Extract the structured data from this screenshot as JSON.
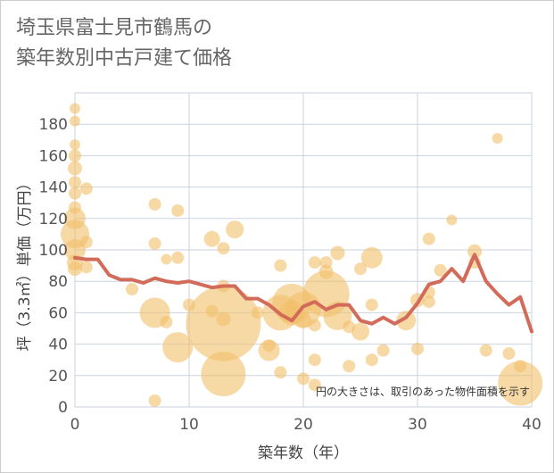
{
  "title": {
    "line1": "埼玉県富士見市鶴馬の",
    "line2": "築年数別中古戸建て価格"
  },
  "colors": {
    "bubble_fill": "#f2c06b",
    "bubble_opacity": 0.6,
    "line": "#d26b5a",
    "grid": "#c8d3e1",
    "frame": "#cccccc"
  },
  "chart_data": {
    "type": "scatter",
    "xlabel": "築年数（年）",
    "ylabel": "坪（3.3㎡）単価（万円）",
    "xlim": [
      0,
      40
    ],
    "ylim": [
      0,
      200
    ],
    "xticks": [
      0,
      10,
      20,
      30,
      40
    ],
    "yticks": [
      0,
      20,
      40,
      60,
      80,
      100,
      120,
      140,
      160,
      180
    ],
    "annotation": "円の大きさは、取引のあった物件面積を示す",
    "bubbles": [
      {
        "x": 0,
        "y": 190,
        "s": 6
      },
      {
        "x": 0,
        "y": 182,
        "s": 6
      },
      {
        "x": 0,
        "y": 167,
        "s": 6
      },
      {
        "x": 0,
        "y": 160,
        "s": 7
      },
      {
        "x": 0,
        "y": 152,
        "s": 8
      },
      {
        "x": 0,
        "y": 143,
        "s": 7
      },
      {
        "x": 0,
        "y": 136,
        "s": 7
      },
      {
        "x": 0,
        "y": 127,
        "s": 7
      },
      {
        "x": 0,
        "y": 120,
        "s": 12
      },
      {
        "x": 0,
        "y": 110,
        "s": 16
      },
      {
        "x": 0,
        "y": 100,
        "s": 12
      },
      {
        "x": 0,
        "y": 92,
        "s": 9
      },
      {
        "x": 0,
        "y": 88,
        "s": 8
      },
      {
        "x": 1,
        "y": 139,
        "s": 7
      },
      {
        "x": 1,
        "y": 105,
        "s": 7
      },
      {
        "x": 1,
        "y": 89,
        "s": 7
      },
      {
        "x": 5,
        "y": 75,
        "s": 7
      },
      {
        "x": 7,
        "y": 129,
        "s": 7
      },
      {
        "x": 7,
        "y": 104,
        "s": 7
      },
      {
        "x": 7,
        "y": 60,
        "s": 17
      },
      {
        "x": 7,
        "y": 4,
        "s": 7
      },
      {
        "x": 8,
        "y": 54,
        "s": 7
      },
      {
        "x": 8,
        "y": 94,
        "s": 6
      },
      {
        "x": 9,
        "y": 95,
        "s": 7
      },
      {
        "x": 9,
        "y": 125,
        "s": 7
      },
      {
        "x": 9,
        "y": 38,
        "s": 17
      },
      {
        "x": 10,
        "y": 65,
        "s": 7
      },
      {
        "x": 12,
        "y": 107,
        "s": 9
      },
      {
        "x": 12,
        "y": 61,
        "s": 7
      },
      {
        "x": 13,
        "y": 101,
        "s": 7
      },
      {
        "x": 13,
        "y": 77,
        "s": 7
      },
      {
        "x": 13,
        "y": 56,
        "s": 8
      },
      {
        "x": 13,
        "y": 53,
        "s": 42
      },
      {
        "x": 13,
        "y": 21,
        "s": 25
      },
      {
        "x": 14,
        "y": 113,
        "s": 10
      },
      {
        "x": 16,
        "y": 60,
        "s": 7
      },
      {
        "x": 17,
        "y": 36,
        "s": 12
      },
      {
        "x": 17,
        "y": 39,
        "s": 7
      },
      {
        "x": 18,
        "y": 22,
        "s": 7
      },
      {
        "x": 18,
        "y": 90,
        "s": 7
      },
      {
        "x": 18,
        "y": 60,
        "s": 20
      },
      {
        "x": 19,
        "y": 66,
        "s": 22
      },
      {
        "x": 19,
        "y": 60,
        "s": 14
      },
      {
        "x": 20,
        "y": 62,
        "s": 20
      },
      {
        "x": 20,
        "y": 55,
        "s": 9
      },
      {
        "x": 20,
        "y": 18,
        "s": 7
      },
      {
        "x": 21,
        "y": 92,
        "s": 7
      },
      {
        "x": 21,
        "y": 52,
        "s": 7
      },
      {
        "x": 21,
        "y": 30,
        "s": 7
      },
      {
        "x": 21,
        "y": 14,
        "s": 7
      },
      {
        "x": 22,
        "y": 92,
        "s": 7
      },
      {
        "x": 22,
        "y": 86,
        "s": 8
      },
      {
        "x": 22,
        "y": 72,
        "s": 26
      },
      {
        "x": 23,
        "y": 98,
        "s": 8
      },
      {
        "x": 23,
        "y": 58,
        "s": 16
      },
      {
        "x": 24,
        "y": 51,
        "s": 7
      },
      {
        "x": 24,
        "y": 26,
        "s": 7
      },
      {
        "x": 25,
        "y": 88,
        "s": 7
      },
      {
        "x": 25,
        "y": 48,
        "s": 10
      },
      {
        "x": 26,
        "y": 95,
        "s": 12
      },
      {
        "x": 26,
        "y": 65,
        "s": 7
      },
      {
        "x": 26,
        "y": 30,
        "s": 7
      },
      {
        "x": 27,
        "y": 36,
        "s": 7
      },
      {
        "x": 29,
        "y": 55,
        "s": 11
      },
      {
        "x": 30,
        "y": 68,
        "s": 8
      },
      {
        "x": 30,
        "y": 37,
        "s": 7
      },
      {
        "x": 31,
        "y": 107,
        "s": 7
      },
      {
        "x": 31,
        "y": 73,
        "s": 7
      },
      {
        "x": 31,
        "y": 67,
        "s": 7
      },
      {
        "x": 32,
        "y": 87,
        "s": 7
      },
      {
        "x": 33,
        "y": 119,
        "s": 6
      },
      {
        "x": 35,
        "y": 99,
        "s": 8
      },
      {
        "x": 35,
        "y": 92,
        "s": 7
      },
      {
        "x": 36,
        "y": 36,
        "s": 7
      },
      {
        "x": 37,
        "y": 171,
        "s": 6
      },
      {
        "x": 38,
        "y": 34,
        "s": 7
      },
      {
        "x": 39,
        "y": 26,
        "s": 7
      },
      {
        "x": 39,
        "y": 15,
        "s": 25
      }
    ],
    "series": [
      {
        "x": [
          0,
          1,
          2,
          3,
          4,
          5,
          6,
          7,
          8,
          9,
          10,
          11,
          12,
          13,
          14,
          15,
          16,
          17,
          18,
          19,
          20,
          21,
          22,
          23,
          24,
          25,
          26,
          27,
          28,
          29,
          30,
          31,
          32,
          33,
          34,
          35,
          36,
          37,
          38,
          39,
          40
        ],
        "values": [
          95,
          94,
          94,
          84,
          81,
          81,
          79,
          82,
          80,
          79,
          80,
          78,
          76,
          77,
          77,
          69,
          69,
          65,
          59,
          55,
          64,
          67,
          62,
          65,
          65,
          55,
          53,
          57,
          53,
          57,
          66,
          78,
          80,
          88,
          80,
          97,
          80,
          72,
          65,
          70,
          48
        ]
      }
    ]
  }
}
